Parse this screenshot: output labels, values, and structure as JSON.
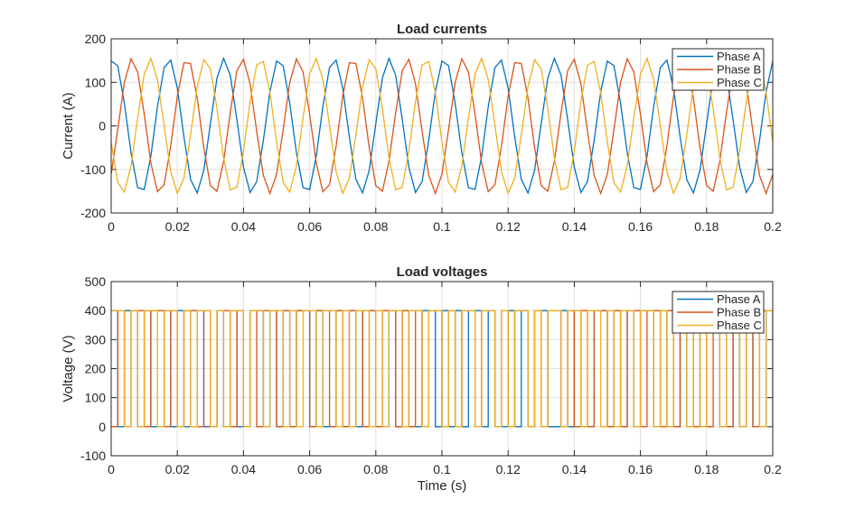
{
  "colors": {
    "phase_a": "#0072BD",
    "phase_b": "#D95319",
    "phase_c": "#EDB120",
    "grid": "#E0E0E0",
    "axis": "#262626"
  },
  "chart_data": [
    {
      "type": "line",
      "title": "Load currents",
      "xlabel": "",
      "ylabel": "Current (A)",
      "xlim": [
        0,
        0.2
      ],
      "ylim": [
        -200,
        200
      ],
      "xticks": [
        "0",
        "0.02",
        "0.04",
        "0.06",
        "0.08",
        "0.1",
        "0.12",
        "0.14",
        "0.16",
        "0.18",
        "0.2"
      ],
      "yticks": [
        "-200",
        "-100",
        "0",
        "100",
        "200"
      ],
      "grid": true,
      "legend_position": "top-right",
      "x": [
        0,
        0.002,
        0.004,
        0.006,
        0.008,
        0.01,
        0.012,
        0.014,
        0.016,
        0.018,
        0.02,
        0.022,
        0.024,
        0.026,
        0.028,
        0.03,
        0.032,
        0.034,
        0.036,
        0.038,
        0.04,
        0.042,
        0.044,
        0.046,
        0.048,
        0.05,
        0.052,
        0.054,
        0.056,
        0.058,
        0.06,
        0.062,
        0.064,
        0.066,
        0.068,
        0.07,
        0.072,
        0.074,
        0.076,
        0.078,
        0.08,
        0.082,
        0.084,
        0.086,
        0.088,
        0.09,
        0.092,
        0.094,
        0.096,
        0.098,
        0.1,
        0.102,
        0.104,
        0.106,
        0.108,
        0.11,
        0.112,
        0.114,
        0.116,
        0.118,
        0.12,
        0.122,
        0.124,
        0.126,
        0.128,
        0.13,
        0.132,
        0.134,
        0.136,
        0.138,
        0.14,
        0.142,
        0.144,
        0.146,
        0.148,
        0.15,
        0.152,
        0.154,
        0.156,
        0.158,
        0.16,
        0.162,
        0.164,
        0.166,
        0.168,
        0.17,
        0.172,
        0.174,
        0.176,
        0.178,
        0.18,
        0.182,
        0.184,
        0.186,
        0.188,
        0.19,
        0.192,
        0.194,
        0.196,
        0.198,
        0.2
      ],
      "series": [
        {
          "name": "Phase A",
          "values": [
            149,
            138,
            52,
            -62,
            -142,
            -146,
            -70,
            44,
            134,
            151,
            87,
            -25,
            -123,
            -154,
            -102,
            5,
            110,
            155,
            116,
            14,
            -95,
            -153,
            -128,
            -33,
            79,
            149,
            138,
            52,
            -62,
            -142,
            -146,
            -70,
            44,
            134,
            151,
            87,
            -25,
            -123,
            -154,
            -102,
            5,
            110,
            155,
            116,
            14,
            -95,
            -153,
            -128,
            -33,
            79,
            149,
            138,
            52,
            -62,
            -142,
            -146,
            -70,
            44,
            134,
            151,
            87,
            -25,
            -123,
            -154,
            -102,
            5,
            110,
            155,
            116,
            14,
            -95,
            -153,
            -128,
            -33,
            79,
            149,
            138,
            52,
            -62,
            -142,
            -146,
            -70,
            44,
            134,
            151,
            87,
            -25,
            -123,
            -154,
            -102,
            5,
            110,
            155,
            116,
            14,
            -95,
            -153,
            -128,
            -33,
            79,
            149
          ]
        },
        {
          "name": "Phase B",
          "values": [
            -111,
            -8,
            100,
            154,
            124,
            27,
            -85,
            -151,
            -135,
            -46,
            68,
            145,
            143,
            64,
            -50,
            -137,
            -150,
            -81,
            31,
            127,
            153,
            97,
            -12,
            -114,
            -155,
            -111,
            -8,
            100,
            154,
            124,
            27,
            -85,
            -151,
            -135,
            -46,
            68,
            145,
            143,
            64,
            -50,
            -137,
            -150,
            -81,
            31,
            127,
            153,
            97,
            -12,
            -114,
            -155,
            -111,
            -8,
            100,
            154,
            124,
            27,
            -85,
            -151,
            -135,
            -46,
            68,
            145,
            143,
            64,
            -50,
            -137,
            -150,
            -81,
            31,
            127,
            153,
            97,
            -12,
            -114,
            -155,
            -111,
            -8,
            100,
            154,
            124,
            27,
            -85,
            -151,
            -135,
            -46,
            68,
            145,
            143,
            64,
            -50,
            -137,
            -150,
            -81,
            31,
            127,
            153,
            97,
            -12,
            -114,
            -155,
            -111
          ]
        },
        {
          "name": "Phase C",
          "values": [
            -37,
            -130,
            -152,
            -92,
            18,
            119,
            155,
            107,
            1,
            -105,
            -155,
            -120,
            -21,
            90,
            152,
            131,
            40,
            -74,
            -147,
            -141,
            -58,
            56,
            140,
            148,
            76,
            -37,
            -130,
            -152,
            -92,
            18,
            119,
            155,
            107,
            1,
            -105,
            -155,
            -120,
            -21,
            90,
            152,
            131,
            40,
            -74,
            -147,
            -141,
            -58,
            56,
            140,
            148,
            76,
            -37,
            -130,
            -152,
            -92,
            18,
            119,
            155,
            107,
            1,
            -105,
            -155,
            -120,
            -21,
            90,
            152,
            131,
            40,
            -74,
            -147,
            -141,
            -58,
            56,
            140,
            148,
            76,
            -37,
            -130,
            -152,
            -92,
            18,
            119,
            155,
            107,
            1,
            -105,
            -155,
            -120,
            -21,
            90,
            152,
            131,
            40,
            -74,
            -147,
            -141,
            -58,
            56,
            140,
            148,
            76,
            -37
          ]
        }
      ]
    },
    {
      "type": "line",
      "title": "Load voltages",
      "xlabel": "Time (s)",
      "ylabel": "Voltage (V)",
      "xlim": [
        0,
        0.2
      ],
      "ylim": [
        -100,
        500
      ],
      "xticks": [
        "0",
        "0.02",
        "0.04",
        "0.06",
        "0.08",
        "0.1",
        "0.12",
        "0.14",
        "0.16",
        "0.18",
        "0.2"
      ],
      "yticks": [
        "-100",
        "0",
        "100",
        "200",
        "300",
        "400",
        "500"
      ],
      "grid": true,
      "legend_position": "top-right",
      "step": true,
      "series": [
        {
          "name": "Phase A",
          "values": [
            400,
            0,
            400,
            400,
            0,
            400,
            0,
            0,
            400,
            0,
            400,
            0,
            400,
            400,
            0,
            0,
            400,
            0,
            400,
            0,
            0,
            400,
            400,
            0,
            400,
            0,
            400,
            0,
            400,
            400,
            0,
            400,
            0,
            0,
            400,
            0,
            400,
            0,
            400,
            400,
            0,
            0,
            400,
            0,
            400,
            0,
            0,
            400,
            400,
            0,
            400,
            0,
            400,
            0,
            400,
            400,
            0,
            400,
            0,
            0,
            400,
            0,
            400,
            0,
            400,
            400,
            0,
            0,
            400,
            0,
            400,
            0,
            0,
            400,
            400,
            0,
            400,
            0,
            400,
            0,
            400,
            400,
            0,
            400,
            0,
            0,
            400,
            0,
            400,
            0,
            400,
            400,
            0,
            0,
            400,
            0,
            400,
            0,
            0,
            400,
            400
          ]
        },
        {
          "name": "Phase B",
          "values": [
            0,
            400,
            0,
            400,
            400,
            0,
            400,
            400,
            0,
            400,
            0,
            400,
            400,
            0,
            400,
            0,
            400,
            400,
            0,
            400,
            0,
            400,
            0,
            400,
            400,
            0,
            400,
            0,
            400,
            400,
            0,
            400,
            400,
            0,
            400,
            0,
            400,
            400,
            0,
            400,
            0,
            400,
            400,
            0,
            400,
            0,
            400,
            0,
            400,
            400,
            0,
            400,
            0,
            400,
            400,
            0,
            400,
            400,
            0,
            400,
            0,
            400,
            400,
            0,
            400,
            0,
            400,
            400,
            0,
            400,
            0,
            400,
            0,
            400,
            400,
            0,
            400,
            0,
            400,
            400,
            0,
            400,
            400,
            0,
            400,
            0,
            400,
            400,
            0,
            400,
            0,
            400,
            400,
            0,
            400,
            0,
            400,
            0,
            400,
            400,
            0
          ]
        },
        {
          "name": "Phase C",
          "values": [
            400,
            400,
            0,
            400,
            0,
            400,
            400,
            0,
            400,
            400,
            0,
            400,
            0,
            400,
            400,
            0,
            400,
            0,
            400,
            400,
            0,
            400,
            400,
            0,
            400,
            400,
            0,
            400,
            0,
            400,
            400,
            0,
            400,
            400,
            0,
            400,
            0,
            400,
            400,
            0,
            400,
            0,
            400,
            400,
            0,
            400,
            400,
            0,
            400,
            400,
            0,
            400,
            0,
            400,
            400,
            0,
            400,
            400,
            0,
            400,
            0,
            400,
            400,
            0,
            400,
            0,
            400,
            400,
            0,
            400,
            400,
            0,
            400,
            400,
            0,
            400,
            0,
            400,
            400,
            0,
            400,
            400,
            0,
            400,
            0,
            400,
            400,
            0,
            400,
            0,
            400,
            400,
            0,
            400,
            400,
            0,
            400,
            400,
            0,
            400,
            400
          ]
        }
      ]
    }
  ]
}
